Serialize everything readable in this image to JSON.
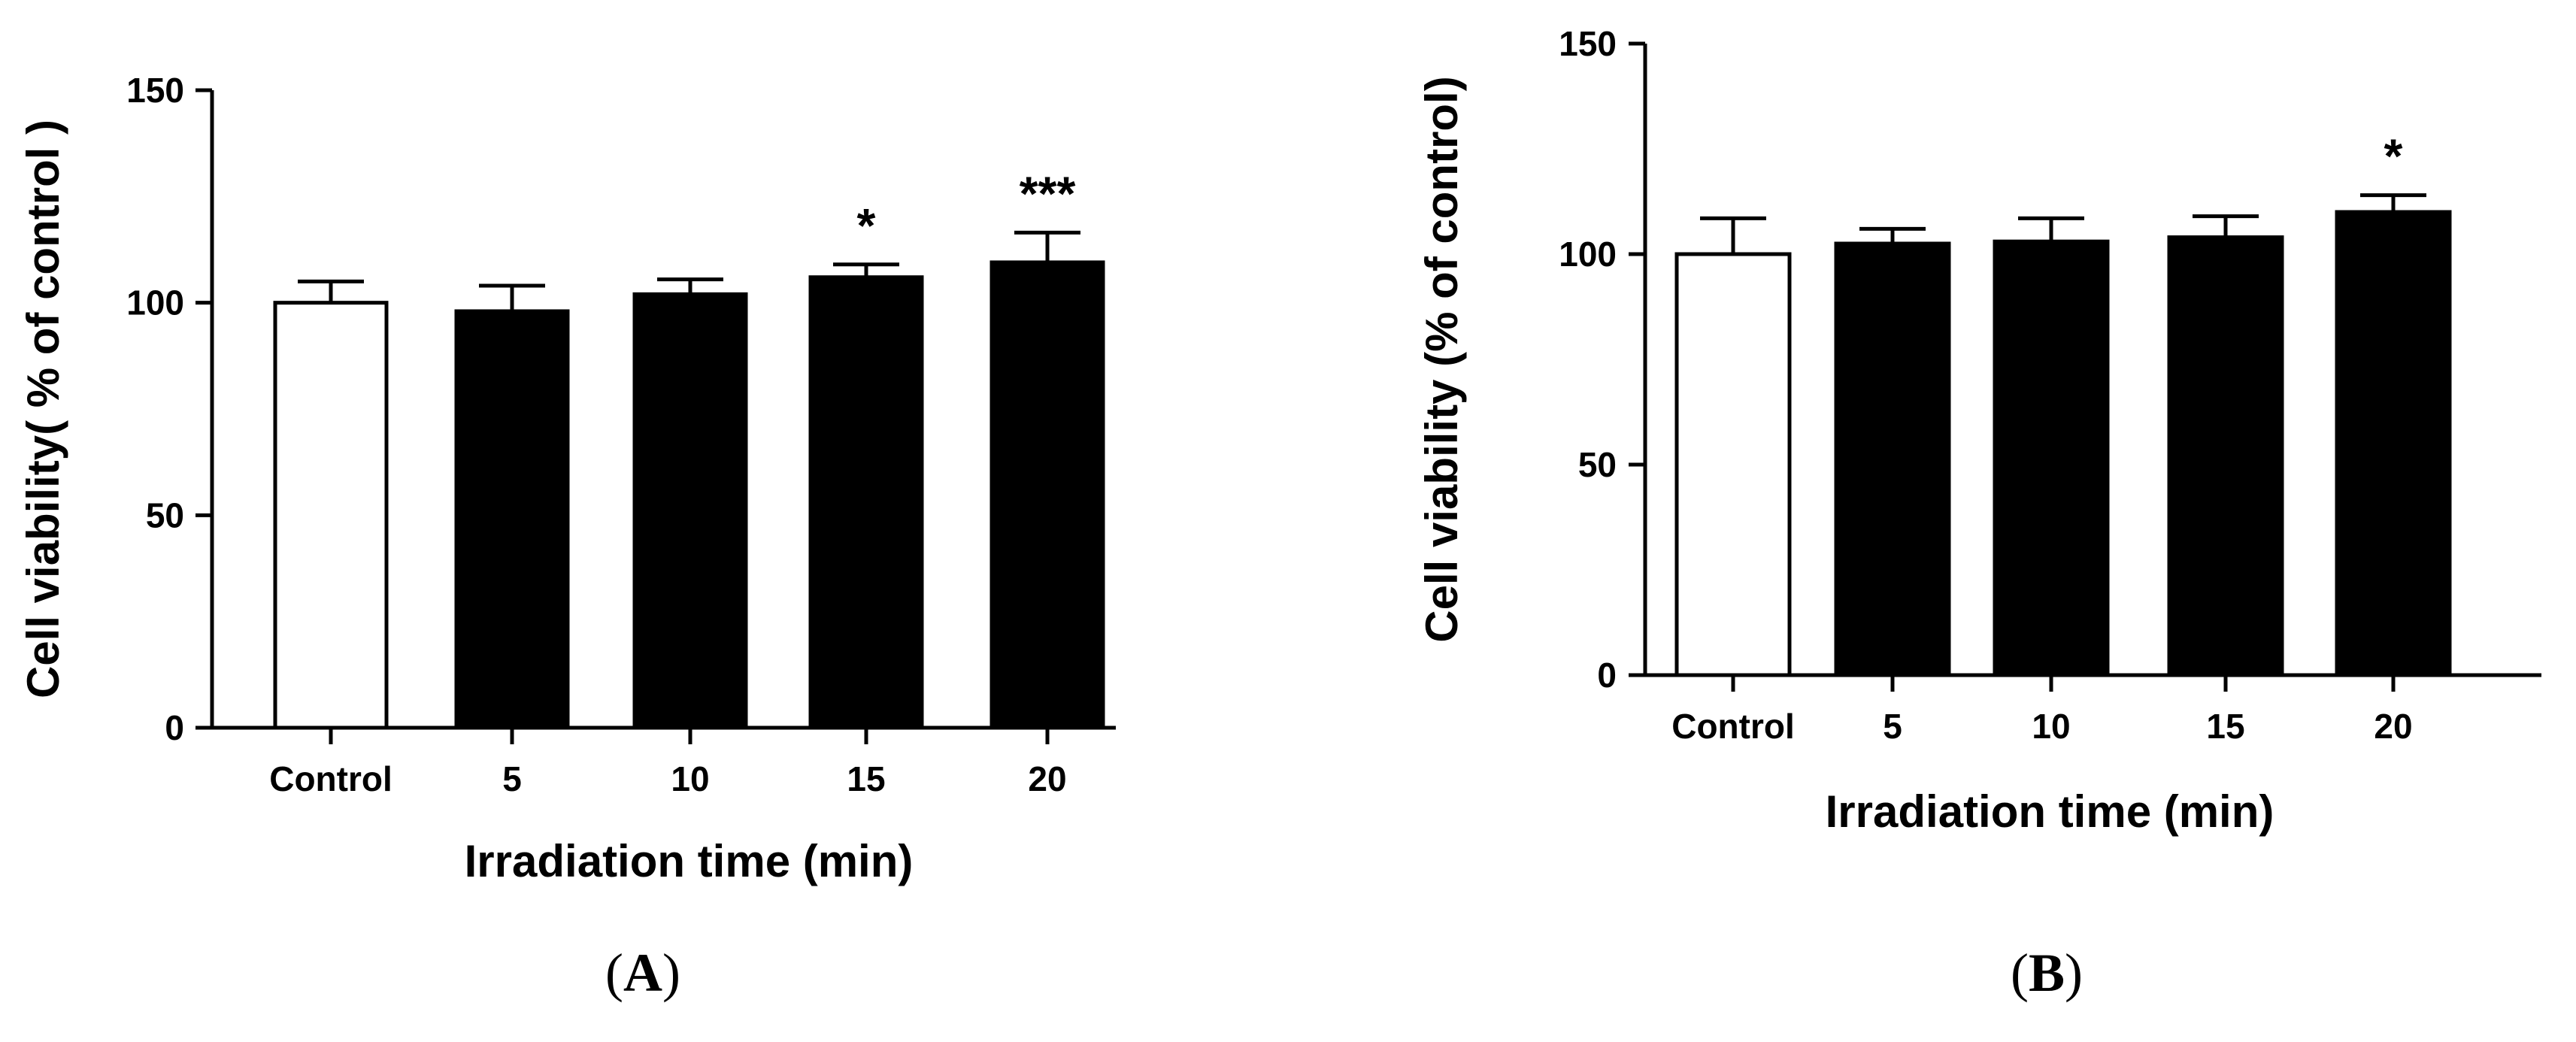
{
  "colors": {
    "bar_fill": "#000000",
    "control_fill": "#ffffff",
    "stroke": "#000000",
    "background": "#ffffff"
  },
  "chart_data": [
    {
      "type": "bar",
      "panel_label": "A",
      "categories": [
        "Control",
        "5",
        "10",
        "15",
        "20"
      ],
      "values": [
        100,
        98,
        102,
        106,
        109.5
      ],
      "errors": [
        5,
        6,
        3.5,
        3,
        7
      ],
      "fills": [
        "#ffffff",
        "#000000",
        "#000000",
        "#000000",
        "#000000"
      ],
      "significance": [
        "",
        "",
        "",
        "*",
        "***"
      ],
      "xlabel": "Irradiation time (min)",
      "ylabel": "Cell viability( % of control )",
      "ylim": [
        0,
        150
      ],
      "yticks": [
        "0",
        "50",
        "100",
        "150"
      ],
      "grid": false
    },
    {
      "type": "bar",
      "panel_label": "B",
      "categories": [
        "Control",
        "5",
        "10",
        "15",
        "20"
      ],
      "values": [
        100,
        102.5,
        103,
        104,
        110
      ],
      "errors": [
        8.5,
        3.5,
        5.5,
        5,
        4
      ],
      "fills": [
        "#ffffff",
        "#000000",
        "#000000",
        "#000000",
        "#000000"
      ],
      "significance": [
        "",
        "",
        "",
        "",
        "*"
      ],
      "xlabel": "Irradiation time (min)",
      "ylabel": "Cell viability (% of control)",
      "ylim": [
        0,
        150
      ],
      "yticks": [
        "0",
        "50",
        "100",
        "150"
      ],
      "grid": false
    }
  ]
}
